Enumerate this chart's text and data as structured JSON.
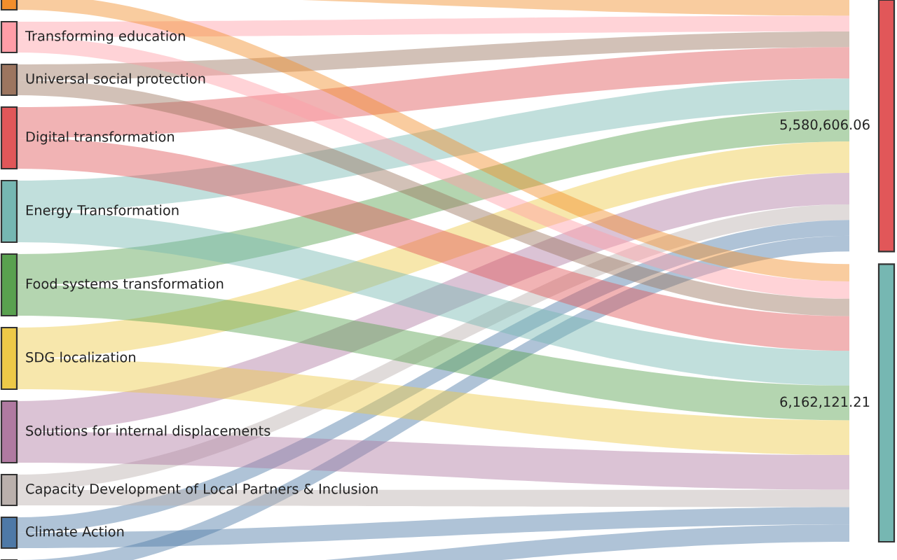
{
  "chart_data": {
    "type": "other",
    "categories": [
      null,
      "Transforming education",
      "Universal social protection",
      "Digital transformation",
      "Energy Transformation",
      "Food systems transformation",
      "SDG localization",
      "Solutions for internal displacements",
      "Capacity Development of Local Partners & Inclusion",
      "Climate Action",
      null,
      null,
      null
    ],
    "colors": [
      "#f28e2b",
      "#ff9da7",
      "#9c755f",
      "#e15759",
      "#76b7b2",
      "#59a14f",
      "#edc948",
      "#b07aa1",
      "#bab0ac",
      "#4e79a7",
      "#4e79a7",
      "#e15759",
      "#76b7b2"
    ],
    "values": [
      null,
      null,
      null,
      null,
      null,
      null,
      null,
      null,
      null,
      null,
      null,
      5580606.06,
      6162121.21
    ],
    "value_labels": [
      null,
      null,
      null,
      null,
      null,
      null,
      null,
      null,
      null,
      null,
      null,
      "5,580,606.06",
      "6,162,121.21"
    ]
  }
}
